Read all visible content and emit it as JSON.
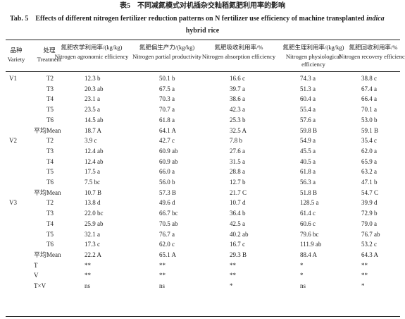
{
  "title": {
    "zh": "表5　不同减氮模式对机插杂交籼稻氮肥利用率的影响",
    "en_1": "Tab. 5　Effects of different nitrogen fertilizer reduction patterns on N fertilizer use efficiency of machine transplanted",
    "en_italic": "indica",
    "en_2": "hybrid rice"
  },
  "table": {
    "header": [
      {
        "zh": "品种",
        "en": "Variety"
      },
      {
        "zh": "处理",
        "en": "Treatment"
      },
      {
        "zh": "氮肥农学利用率/(kg/kg)",
        "en": "Nitrogen agronomic efficiency"
      },
      {
        "zh": "氮肥偏生产力/(kg/kg)",
        "en": "Nitrogen partial productivity"
      },
      {
        "zh": "氮肥吸收利用率/%",
        "en": "Nitrogen absorption efficiency"
      },
      {
        "zh": "氮肥生理利用率/(kg/kg)",
        "en": "Nitrogen physiological efficiency"
      },
      {
        "zh": "氮肥回收利用率/%",
        "en": "Nitrogen recovery efficiency"
      }
    ],
    "rows": [
      {
        "variety": "V1",
        "treatment": "T2",
        "cells": [
          "12.3 b",
          "50.1 b",
          "16.6 c",
          "74.3 a",
          "38.8 c"
        ]
      },
      {
        "treatment": "T3",
        "cells": [
          "20.3 ab",
          "67.5 a",
          "39.7 a",
          "51.3 a",
          "67.4 a"
        ]
      },
      {
        "treatment": "T4",
        "cells": [
          "23.1 a",
          "70.3 a",
          "38.6 a",
          "60.4 a",
          "66.4 a"
        ]
      },
      {
        "treatment": "T5",
        "cells": [
          "23.5 a",
          "70.7 a",
          "42.3 a",
          "55.4 a",
          "70.1 a"
        ]
      },
      {
        "treatment": "T6",
        "cells": [
          "14.5 ab",
          "61.8 a",
          "25.3 b",
          "57.6 a",
          "53.0 b"
        ]
      },
      {
        "mean": "平均Mean",
        "cells": [
          "18.7 A",
          "64.1 A",
          "32.5 A",
          "59.8 B",
          "59.1 B"
        ]
      },
      {
        "variety": "V2",
        "treatment": "T2",
        "cells": [
          "3.9 c",
          "42.7 c",
          "7.8 b",
          "54.9 a",
          "35.4 c"
        ]
      },
      {
        "treatment": "T3",
        "cells": [
          "12.4 ab",
          "60.9 ab",
          "27.6 a",
          "45.5 a",
          "62.0 a"
        ]
      },
      {
        "treatment": "T4",
        "cells": [
          "12.4 ab",
          "60.9 ab",
          "31.5 a",
          "40.5 a",
          "65.9 a"
        ]
      },
      {
        "treatment": "T5",
        "cells": [
          "17.5 a",
          "66.0 a",
          "28.8 a",
          "61.8 a",
          "63.2 a"
        ]
      },
      {
        "treatment": "T6",
        "cells": [
          "7.5 bc",
          "56.0 b",
          "12.7 b",
          "56.3 a",
          "47.1 b"
        ]
      },
      {
        "mean": "平均Mean",
        "cells": [
          "10.7 B",
          "57.3 B",
          "21.7 C",
          "51.8 B",
          "54.7 C"
        ]
      },
      {
        "variety": "V3",
        "treatment": "T2",
        "cells": [
          "13.8 d",
          "49.6 d",
          "10.7 d",
          "128.5 a",
          "39.9 d"
        ]
      },
      {
        "treatment": "T3",
        "cells": [
          "22.0 bc",
          "66.7 bc",
          "36.4 b",
          "61.4 c",
          "72.9 b"
        ]
      },
      {
        "treatment": "T4",
        "cells": [
          "25.9 ab",
          "70.5 ab",
          "42.5 a",
          "60.6 c",
          "79.0 a"
        ]
      },
      {
        "treatment": "T5",
        "cells": [
          "32.1 a",
          "76.7 a",
          "40.2 ab",
          "79.6 bc",
          "76.7 ab"
        ]
      },
      {
        "treatment": "T6",
        "cells": [
          "17.3 c",
          "62.0 c",
          "16.7 c",
          "111.9 ab",
          "53.2 c"
        ]
      },
      {
        "mean": "平均Mean",
        "cells": [
          "22.2 A",
          "65.1 A",
          "29.3 B",
          "88.4 A",
          "64.3 A"
        ]
      },
      {
        "mean": "T",
        "cells": [
          "**",
          "**",
          "**",
          "*",
          "**"
        ]
      },
      {
        "mean": "V",
        "cells": [
          "**",
          "**",
          "**",
          "*",
          "**"
        ]
      },
      {
        "mean": "T×V",
        "cells": [
          "ns",
          "ns",
          "*",
          "ns",
          "*"
        ]
      }
    ]
  }
}
